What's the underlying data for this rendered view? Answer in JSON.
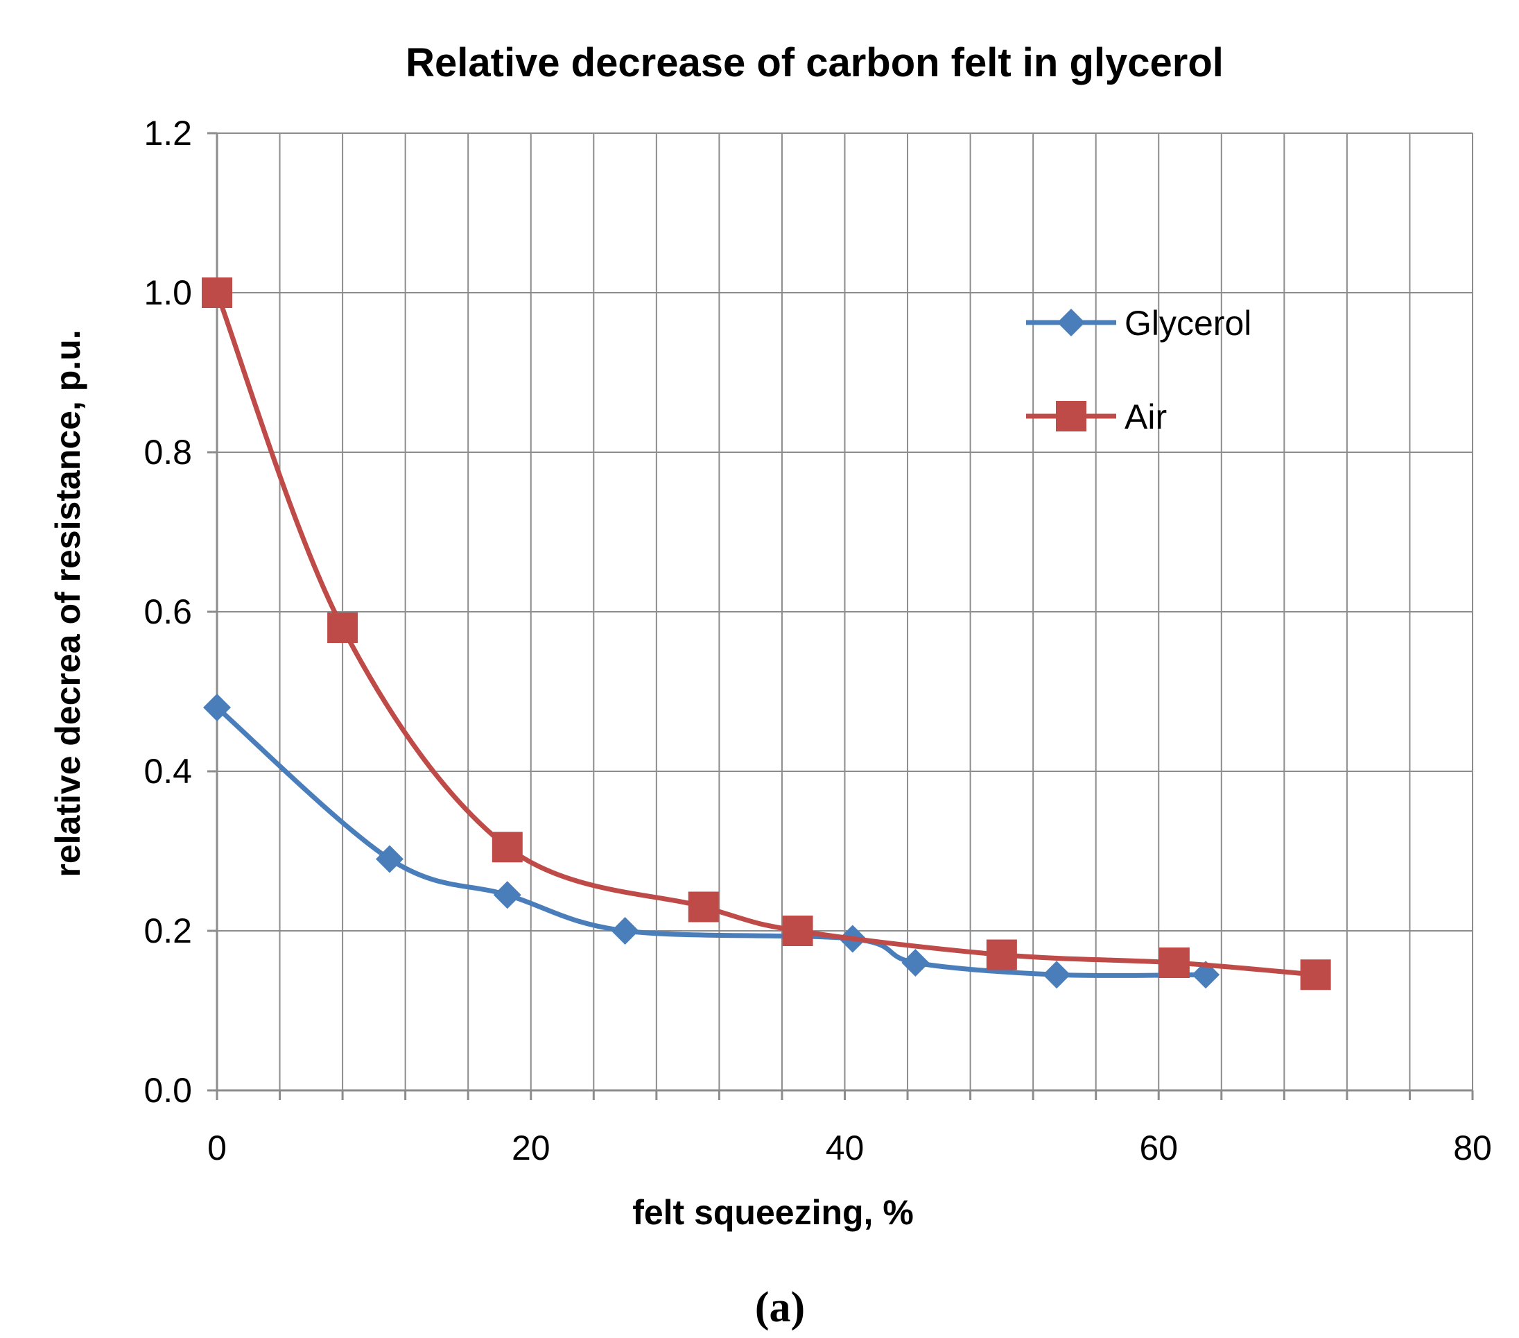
{
  "chart_data": {
    "type": "line",
    "title": "Relative decrease of carbon  felt in glycerol",
    "xlabel": "felt squeezing, %",
    "ylabel": "relative decrea of resistance, p.u.",
    "xlim": [
      0,
      80
    ],
    "ylim": [
      0,
      1.2
    ],
    "x_ticks": [
      0,
      20,
      40,
      60,
      80
    ],
    "x_tick_labels": [
      "0",
      "20",
      "40",
      "60",
      "80"
    ],
    "y_ticks": [
      0,
      0.2,
      0.4,
      0.6,
      0.8,
      1.0,
      1.2
    ],
    "y_tick_labels": [
      "0.0",
      "0.2",
      "0.4",
      "0.6",
      "0.8",
      "1.0",
      "1.2"
    ],
    "x_minor_step": 4,
    "grid": true,
    "legend_position": "top-right",
    "series": [
      {
        "name": "Glycerol",
        "color": "#4a7ebb",
        "marker": "diamond",
        "x": [
          0,
          11,
          18.5,
          26,
          40.5,
          44.5,
          53.5,
          63
        ],
        "y": [
          0.48,
          0.29,
          0.245,
          0.2,
          0.19,
          0.16,
          0.145,
          0.145
        ]
      },
      {
        "name": "Air",
        "color": "#be4b48",
        "marker": "square",
        "x": [
          0,
          8,
          18.5,
          31,
          37,
          50,
          61,
          70
        ],
        "y": [
          1.0,
          0.58,
          0.305,
          0.23,
          0.2,
          0.17,
          0.16,
          0.145
        ]
      }
    ]
  },
  "caption": "(a)"
}
